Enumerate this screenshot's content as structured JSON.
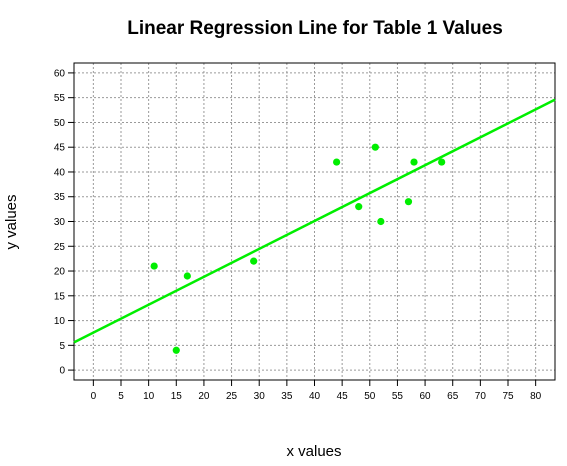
{
  "colors": {
    "series": "#00ee00",
    "grid": "#9a9a9a",
    "axis": "#000000"
  },
  "chart_data": {
    "type": "scatter",
    "title": "Linear Regression Line for Table 1 Values",
    "xlabel": "x values",
    "ylabel": "y values",
    "xlim": [
      -3.5,
      83.5
    ],
    "ylim": [
      -2,
      62
    ],
    "x_ticks": [
      0,
      5,
      10,
      15,
      20,
      25,
      30,
      35,
      40,
      45,
      50,
      55,
      60,
      65,
      70,
      75,
      80
    ],
    "y_ticks": [
      0,
      5,
      10,
      15,
      20,
      25,
      30,
      35,
      40,
      45,
      50,
      55,
      60
    ],
    "x_tick_labels": [
      "0",
      "5",
      "10",
      "15",
      "20",
      "25",
      "30",
      "35",
      "40",
      "45",
      "50",
      "55",
      "60",
      "65",
      "70",
      "75",
      "80"
    ],
    "y_tick_labels": [
      "0",
      "5",
      "10",
      "15",
      "20",
      "25",
      "30",
      "35",
      "40",
      "45",
      "50",
      "55",
      "60"
    ],
    "grid": true,
    "points": [
      {
        "x": 11,
        "y": 21
      },
      {
        "x": 15,
        "y": 4
      },
      {
        "x": 17,
        "y": 19
      },
      {
        "x": 29,
        "y": 22
      },
      {
        "x": 44,
        "y": 42
      },
      {
        "x": 48,
        "y": 33
      },
      {
        "x": 51,
        "y": 45
      },
      {
        "x": 52,
        "y": 30
      },
      {
        "x": 57,
        "y": 34
      },
      {
        "x": 58,
        "y": 42
      },
      {
        "x": 63,
        "y": 42
      }
    ],
    "regression_line": {
      "x": [
        -3.5,
        83.5
      ],
      "y": [
        5.6,
        54.6
      ]
    }
  }
}
